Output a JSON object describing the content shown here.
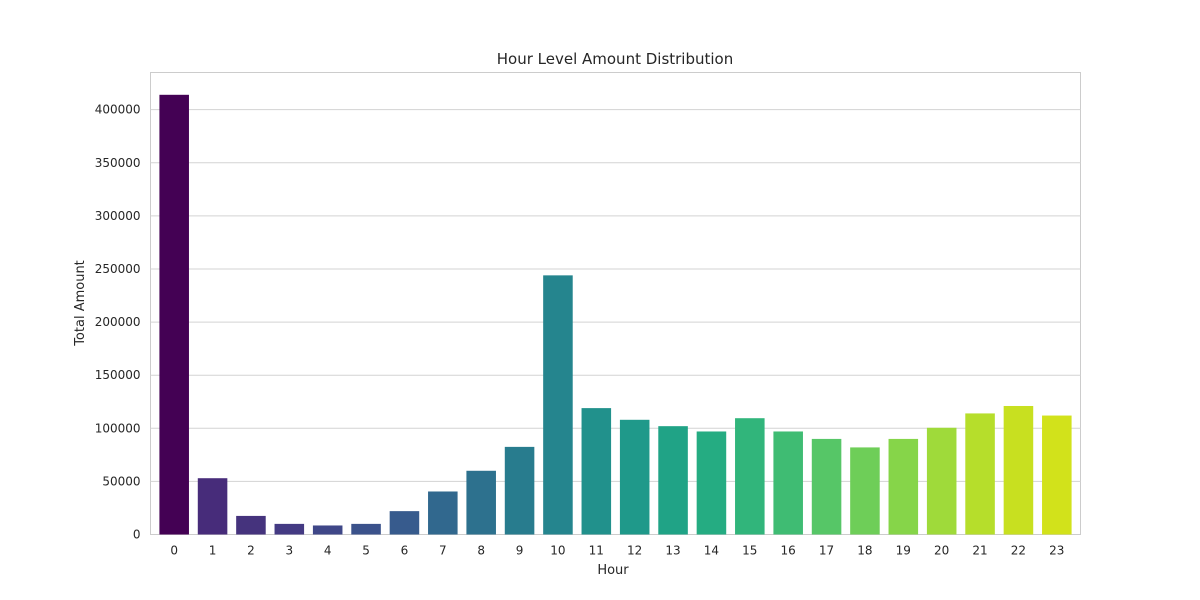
{
  "chart_data": {
    "type": "bar",
    "title": "Hour Level Amount Distribution",
    "xlabel": "Hour",
    "ylabel": "Total Amount",
    "categories": [
      "0",
      "1",
      "2",
      "3",
      "4",
      "5",
      "6",
      "7",
      "8",
      "9",
      "10",
      "11",
      "12",
      "13",
      "14",
      "15",
      "16",
      "17",
      "18",
      "19",
      "20",
      "21",
      "22",
      "23"
    ],
    "values": [
      414000,
      53000,
      17500,
      10000,
      8500,
      10000,
      22000,
      40500,
      60000,
      82500,
      244000,
      119000,
      108000,
      102000,
      97000,
      109500,
      97000,
      90000,
      82000,
      90000,
      100500,
      114000,
      121000,
      112000
    ],
    "ylim": [
      0,
      435000
    ],
    "yticks": [
      0,
      50000,
      100000,
      150000,
      200000,
      250000,
      300000,
      350000,
      400000
    ],
    "ytick_labels": [
      "0",
      "50000",
      "100000",
      "150000",
      "200000",
      "250000",
      "300000",
      "350000",
      "400000"
    ],
    "grid": true,
    "bar_colors": [
      "#440154",
      "#472c7a",
      "#45337d",
      "#443a83",
      "#3f4788",
      "#3b528b",
      "#375b8d",
      "#31688e",
      "#2d718e",
      "#287c8e",
      "#25858e",
      "#21918c",
      "#1f998a",
      "#20a386",
      "#25ac82",
      "#31b57b",
      "#3fbc73",
      "#56c667",
      "#6ece58",
      "#86d549",
      "#9fda3a",
      "#b6de2b",
      "#c8e020",
      "#d2e21b"
    ]
  }
}
